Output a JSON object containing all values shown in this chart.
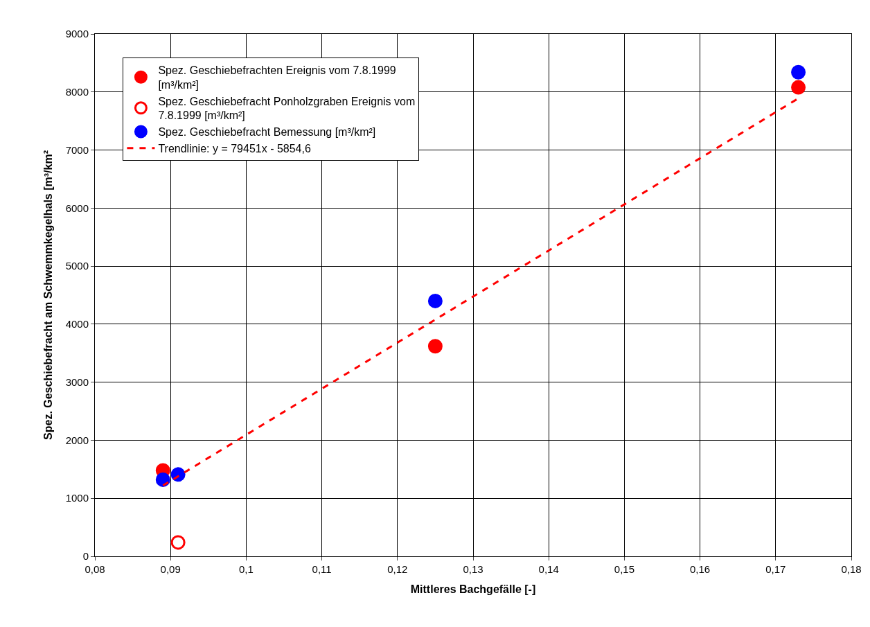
{
  "chart_data": {
    "type": "scatter",
    "xlabel": "Mittleres Bachgefälle [-]",
    "ylabel": "Spez. Geschiebefracht am Schwemmkegelhals [m³/km²",
    "series": [
      {
        "name": "Spez. Geschiebefrachten Ereignis vom 7.8.1999 [m³/km²]",
        "color": "#ff0000",
        "x": [
          0.089,
          0.125,
          0.173
        ],
        "values": [
          1480,
          3620,
          8080
        ],
        "marker": "circle"
      },
      {
        "name": "Spez. Geschiebefracht Ponholzgraben Ereignis vom 7.8.1999 [m³/km²]",
        "color": "#ff0000",
        "x": [
          0.091
        ],
        "values": [
          240
        ],
        "marker": "circle-open"
      },
      {
        "name": "Spez. Geschiebefracht Bemessung [m³/km²]",
        "color": "#0000ff",
        "x": [
          0.089,
          0.091,
          0.125,
          0.173
        ],
        "values": [
          1320,
          1410,
          4400,
          8340
        ],
        "marker": "circle"
      },
      {
        "name": "Trendlinie: y = 79451x - 5854,6",
        "type": "line",
        "color": "#ff0000",
        "line_style": "dashed",
        "marker": "none",
        "x": [
          0.089,
          0.173
        ],
        "values": [
          1220,
          7890
        ]
      }
    ],
    "xlim": [
      0.08,
      0.18
    ],
    "xticks": [
      {
        "value": 0.08,
        "label": "0,08"
      },
      {
        "value": 0.09,
        "label": "0,09"
      },
      {
        "value": 0.1,
        "label": "0,1"
      },
      {
        "value": 0.11,
        "label": "0,11"
      },
      {
        "value": 0.12,
        "label": "0,12"
      },
      {
        "value": 0.13,
        "label": "0,13"
      },
      {
        "value": 0.14,
        "label": "0,14"
      },
      {
        "value": 0.15,
        "label": "0,15"
      },
      {
        "value": 0.16,
        "label": "0,16"
      },
      {
        "value": 0.17,
        "label": "0,17"
      },
      {
        "value": 0.18,
        "label": "0,18"
      }
    ],
    "ylim": [
      0,
      9000
    ],
    "yticks": [
      0,
      1000,
      2000,
      3000,
      4000,
      5000,
      6000,
      7000,
      8000,
      9000
    ],
    "grid": true,
    "legend": "top left"
  }
}
